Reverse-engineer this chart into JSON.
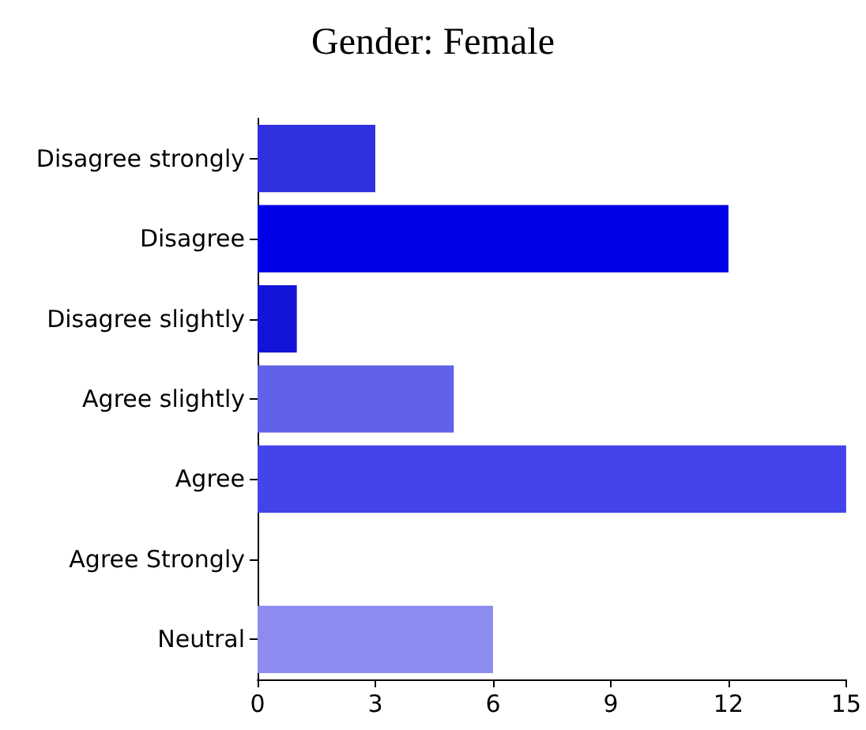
{
  "chart_data": {
    "type": "bar",
    "orientation": "horizontal",
    "title": "Gender: Female",
    "categories": [
      "Disagree strongly",
      "Disagree",
      "Disagree slightly",
      "Agree slightly",
      "Agree",
      "Agree Strongly",
      "Neutral"
    ],
    "values": [
      3,
      12,
      1,
      5,
      15,
      0,
      6
    ],
    "colors": [
      "#3030e0",
      "#0000e6",
      "#1414d8",
      "#6060e8",
      "#4444ea",
      "#7070ee",
      "#8c8cf0"
    ],
    "xlim": [
      0,
      15
    ],
    "xticks": [
      0,
      3,
      6,
      9,
      12,
      15
    ],
    "grid": false
  }
}
